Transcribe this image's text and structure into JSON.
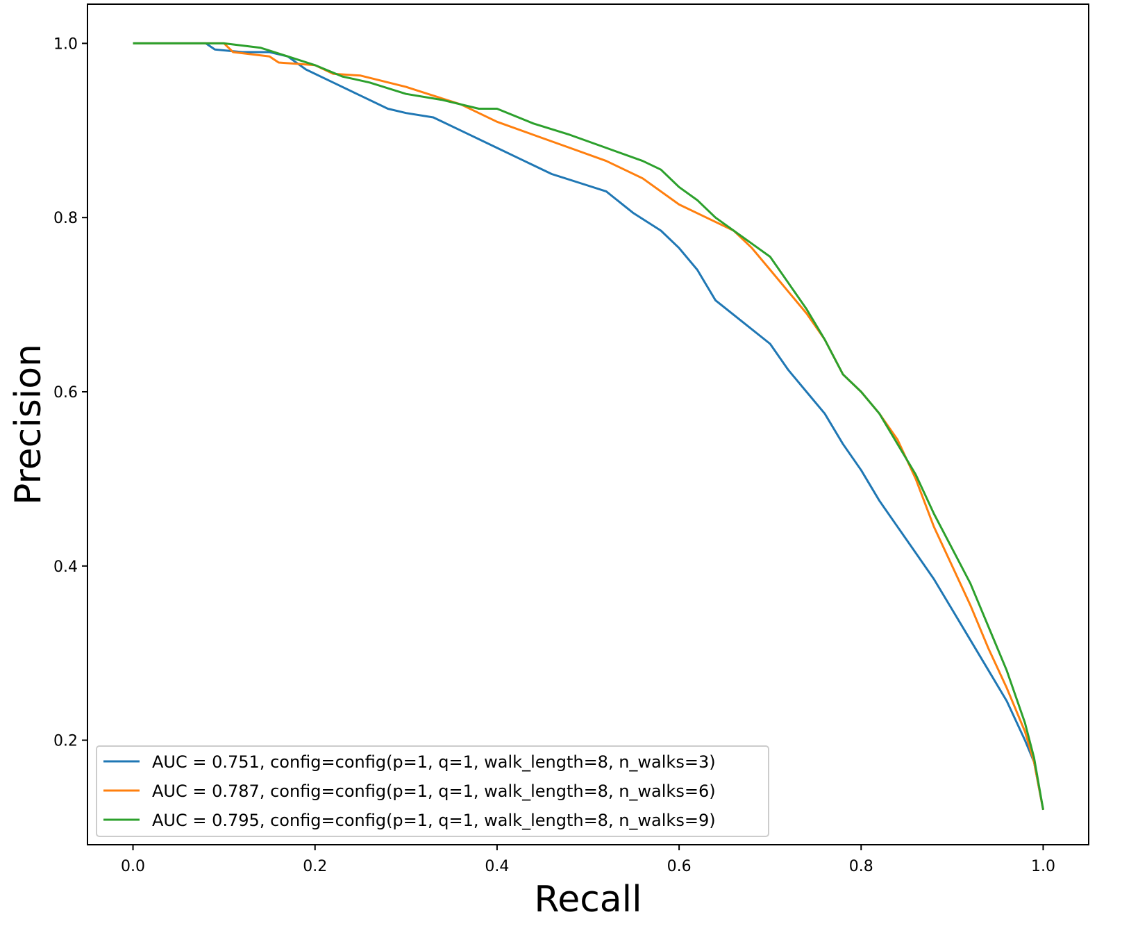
{
  "chart_data": {
    "type": "line",
    "title": "",
    "xlabel": "Recall",
    "ylabel": "Precision",
    "xlim": [
      -0.05,
      1.05
    ],
    "ylim": [
      0.08,
      1.045
    ],
    "xticks": [
      0.0,
      0.2,
      0.4,
      0.6,
      0.8,
      1.0
    ],
    "xtick_labels": [
      "0.0",
      "0.2",
      "0.4",
      "0.6",
      "0.8",
      "1.0"
    ],
    "yticks": [
      0.2,
      0.4,
      0.6,
      0.8,
      1.0
    ],
    "ytick_labels": [
      "0.2",
      "0.4",
      "0.6",
      "0.8",
      "1.0"
    ],
    "grid": false,
    "legend_position": "lower-left",
    "series": [
      {
        "name": "AUC = 0.751, config=config(p=1, q=1, walk_length=8, n_walks=3)",
        "color": "#1f77b4",
        "x": [
          0.0,
          0.08,
          0.09,
          0.12,
          0.15,
          0.17,
          0.19,
          0.22,
          0.25,
          0.28,
          0.3,
          0.33,
          0.36,
          0.4,
          0.43,
          0.46,
          0.49,
          0.52,
          0.55,
          0.58,
          0.6,
          0.62,
          0.64,
          0.67,
          0.7,
          0.72,
          0.74,
          0.76,
          0.78,
          0.8,
          0.82,
          0.84,
          0.86,
          0.88,
          0.9,
          0.92,
          0.94,
          0.96,
          0.98,
          0.99,
          1.0
        ],
        "y": [
          1.0,
          1.0,
          0.993,
          0.99,
          0.99,
          0.985,
          0.97,
          0.955,
          0.94,
          0.925,
          0.92,
          0.915,
          0.9,
          0.88,
          0.865,
          0.85,
          0.84,
          0.83,
          0.805,
          0.785,
          0.765,
          0.74,
          0.705,
          0.68,
          0.655,
          0.625,
          0.6,
          0.575,
          0.54,
          0.51,
          0.475,
          0.445,
          0.415,
          0.385,
          0.35,
          0.315,
          0.28,
          0.245,
          0.2,
          0.175,
          0.12
        ]
      },
      {
        "name": "AUC = 0.787, config=config(p=1, q=1, walk_length=8, n_walks=6)",
        "color": "#ff7f0e",
        "x": [
          0.0,
          0.1,
          0.11,
          0.15,
          0.16,
          0.2,
          0.22,
          0.25,
          0.3,
          0.33,
          0.36,
          0.4,
          0.44,
          0.48,
          0.52,
          0.56,
          0.6,
          0.63,
          0.66,
          0.68,
          0.7,
          0.72,
          0.74,
          0.76,
          0.78,
          0.8,
          0.82,
          0.84,
          0.86,
          0.88,
          0.9,
          0.92,
          0.94,
          0.96,
          0.98,
          0.99,
          1.0
        ],
        "y": [
          1.0,
          1.0,
          0.99,
          0.985,
          0.978,
          0.975,
          0.965,
          0.963,
          0.95,
          0.94,
          0.93,
          0.91,
          0.895,
          0.88,
          0.865,
          0.845,
          0.815,
          0.8,
          0.785,
          0.765,
          0.74,
          0.715,
          0.69,
          0.66,
          0.62,
          0.6,
          0.575,
          0.545,
          0.5,
          0.445,
          0.4,
          0.355,
          0.305,
          0.26,
          0.21,
          0.175,
          0.12
        ]
      },
      {
        "name": "AUC = 0.795, config=config(p=1, q=1, walk_length=8, n_walks=9)",
        "color": "#2ca02c",
        "x": [
          0.0,
          0.1,
          0.14,
          0.17,
          0.2,
          0.23,
          0.26,
          0.3,
          0.34,
          0.38,
          0.4,
          0.44,
          0.48,
          0.52,
          0.56,
          0.58,
          0.6,
          0.62,
          0.64,
          0.66,
          0.68,
          0.7,
          0.72,
          0.74,
          0.76,
          0.78,
          0.8,
          0.82,
          0.84,
          0.86,
          0.88,
          0.9,
          0.92,
          0.94,
          0.96,
          0.98,
          0.99,
          1.0
        ],
        "y": [
          1.0,
          1.0,
          0.995,
          0.985,
          0.975,
          0.962,
          0.955,
          0.942,
          0.935,
          0.925,
          0.925,
          0.908,
          0.895,
          0.88,
          0.865,
          0.855,
          0.835,
          0.82,
          0.8,
          0.785,
          0.77,
          0.755,
          0.725,
          0.695,
          0.66,
          0.62,
          0.6,
          0.575,
          0.54,
          0.505,
          0.46,
          0.42,
          0.38,
          0.33,
          0.28,
          0.22,
          0.18,
          0.12
        ]
      }
    ]
  }
}
